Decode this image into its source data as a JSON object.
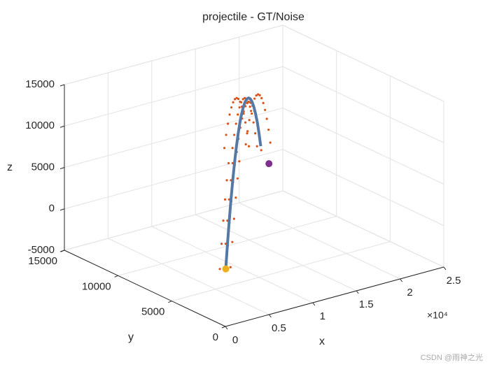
{
  "chart_data": {
    "type": "scatter3d",
    "title": "projectile - GT/Noise",
    "xlabel": "x",
    "ylabel": "y",
    "zlabel": "z",
    "x_exponent": "×10⁴",
    "watermark": "CSDN @雨神之光",
    "xlim": [
      0,
      25000
    ],
    "ylim": [
      0,
      15000
    ],
    "zlim": [
      -5000,
      15000
    ],
    "xticks": [
      0,
      {
        "value": 5000,
        "label": "0.5"
      },
      {
        "value": 10000,
        "label": "1"
      },
      {
        "value": 15000,
        "label": "1.5"
      },
      {
        "value": 20000,
        "label": "2"
      },
      {
        "value": 25000,
        "label": "2.5"
      }
    ],
    "yticks": [
      0,
      5000,
      10000,
      15000
    ],
    "zticks": [
      -5000,
      0,
      5000,
      10000,
      15000
    ],
    "grid": true,
    "series": [
      {
        "style": "points",
        "color": "#d95319",
        "x": [
          2800,
          2250,
          2650,
          2100,
          3562,
          3012,
          3412,
          2862,
          4324,
          3774,
          4174,
          3624,
          5087,
          4537,
          4937,
          4387,
          5849,
          5299,
          5699,
          5149,
          6611,
          6061,
          6461,
          5911,
          7673,
          6573,
          7373,
          6273,
          8435,
          7335,
          8135,
          7035,
          9198,
          8098,
          8898,
          7798,
          9960,
          8860,
          9660,
          8560,
          10722,
          9622,
          10422,
          9322,
          11484,
          10384,
          11184,
          10084,
          12246,
          11146,
          11946,
          10846,
          13009,
          11909,
          12709,
          11609,
          13771,
          12671,
          13471,
          12371,
          14533,
          13433,
          14233,
          13133,
          15295,
          14195,
          14995,
          13895,
          16057,
          14957,
          15757,
          14657,
          16820,
          15720,
          16520,
          15420,
          17582,
          16482,
          17282,
          16182,
          18344,
          17244,
          18044,
          16944
        ],
        "y": [
          1800,
          2350,
          2100,
          1850,
          2257,
          2807,
          2557,
          2307,
          2715,
          3265,
          3015,
          2765,
          3172,
          3722,
          3472,
          3222,
          3629,
          4179,
          3929,
          3679,
          4087,
          4637,
          4387,
          4137,
          4344,
          5444,
          4944,
          4444,
          4801,
          5901,
          5401,
          4901,
          5258,
          6358,
          5858,
          5358,
          5716,
          6816,
          6316,
          5816,
          6173,
          7273,
          6773,
          6273,
          6630,
          7730,
          7230,
          6730,
          7088,
          8188,
          7688,
          7188,
          7545,
          8645,
          8145,
          7645,
          8002,
          9102,
          8602,
          8102,
          8460,
          9560,
          9060,
          8560,
          8917,
          10017,
          9517,
          9017,
          9374,
          10474,
          9974,
          9474,
          9831,
          10931,
          10431,
          9931,
          10289,
          11389,
          10889,
          10389,
          10746,
          11846,
          11346,
          10846
        ],
        "z": [
          250,
          -150,
          -350,
          200,
          2791,
          2391,
          2191,
          2741,
          5090,
          4690,
          4490,
          5040,
          7147,
          6747,
          6547,
          7097,
          8962,
          8562,
          8362,
          8912,
          10535,
          10135,
          9935,
          10485,
          12116,
          11316,
          10916,
          12016,
          13205,
          12405,
          12005,
          13105,
          14052,
          13252,
          12852,
          13952,
          14657,
          13857,
          13457,
          14557,
          15020,
          14220,
          13820,
          14920,
          15141,
          14341,
          13941,
          15041,
          15020,
          14220,
          13820,
          14920,
          14657,
          13857,
          13457,
          14557,
          14052,
          13252,
          12852,
          13952,
          13205,
          12405,
          12005,
          13105,
          12116,
          11316,
          10916,
          12016,
          10785,
          9985,
          9585,
          10685,
          9212,
          8412,
          8012,
          9112,
          7397,
          6597,
          6197,
          7297,
          5340,
          4540,
          4140,
          5240
        ]
      },
      {
        "style": "line",
        "color": "#5579a6",
        "x": [
          2500,
          3262,
          4024,
          4787,
          5549,
          6311,
          7073,
          7835,
          8598,
          9360,
          10122,
          10884,
          11646,
          12409,
          13171,
          13933,
          14695,
          15457,
          16220,
          16982,
          17744
        ],
        "y": [
          2000,
          2457,
          2915,
          3372,
          3829,
          4287,
          4744,
          5201,
          5658,
          6116,
          6573,
          7030,
          7488,
          7945,
          8402,
          8860,
          9317,
          9774,
          10231,
          10689,
          11146
        ],
        "z": [
          0,
          2541,
          4840,
          6897,
          8712,
          10285,
          11616,
          12705,
          13552,
          14157,
          14520,
          14641,
          14520,
          14157,
          13552,
          12705,
          11616,
          10285,
          8712,
          6897,
          4840
        ]
      },
      {
        "style": "marker",
        "color": "#edb120",
        "x": [
          2500
        ],
        "y": [
          2000
        ],
        "z": [
          0
        ]
      },
      {
        "style": "marker",
        "color": "#7e2f8e",
        "x": [
          18500
        ],
        "y": [
          11000
        ],
        "z": [
          2600
        ]
      }
    ]
  }
}
